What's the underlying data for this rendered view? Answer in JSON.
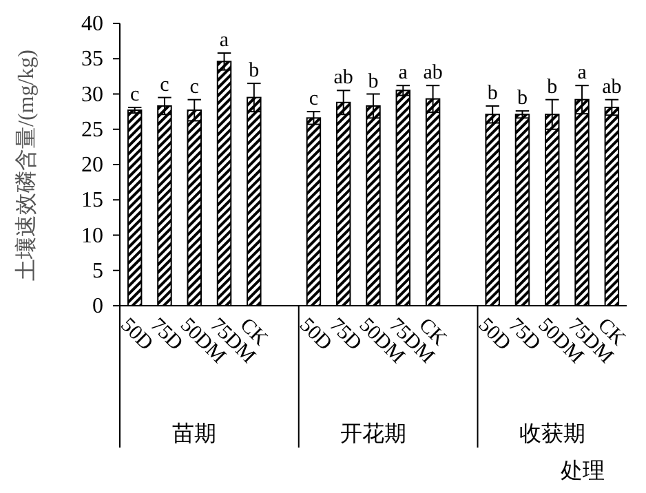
{
  "chart_data": {
    "type": "bar",
    "ylabel": "土壤速效磷含量/(mg/kg)",
    "xlabel": "处理",
    "categories": [
      "50D",
      "75D",
      "50DM",
      "75DM",
      "CK",
      "50D",
      "75D",
      "50DM",
      "75DM",
      "CK",
      "50D",
      "75D",
      "50DM",
      "75DM",
      "CK"
    ],
    "values": [
      27.7,
      28.3,
      27.7,
      34.6,
      29.5,
      26.6,
      28.8,
      28.3,
      30.5,
      29.3,
      27.1,
      27.1,
      27.1,
      29.2,
      28.1
    ],
    "errors": [
      0.4,
      1.2,
      1.5,
      1.2,
      2.0,
      0.9,
      1.7,
      1.7,
      0.7,
      1.9,
      1.2,
      0.5,
      2.1,
      2.0,
      1.1
    ],
    "value_labels": [
      "c",
      "c",
      "c",
      "a",
      "b",
      "c",
      "ab",
      "b",
      "a",
      "ab",
      "b",
      "b",
      "b",
      "a",
      "ab"
    ],
    "annotations": [
      "苗期",
      "开花期",
      "收获期"
    ],
    "color": "#000000",
    "ylim": [
      0,
      40
    ],
    "yticks": [
      0,
      5,
      10,
      15,
      20,
      25,
      30,
      35,
      40
    ]
  }
}
